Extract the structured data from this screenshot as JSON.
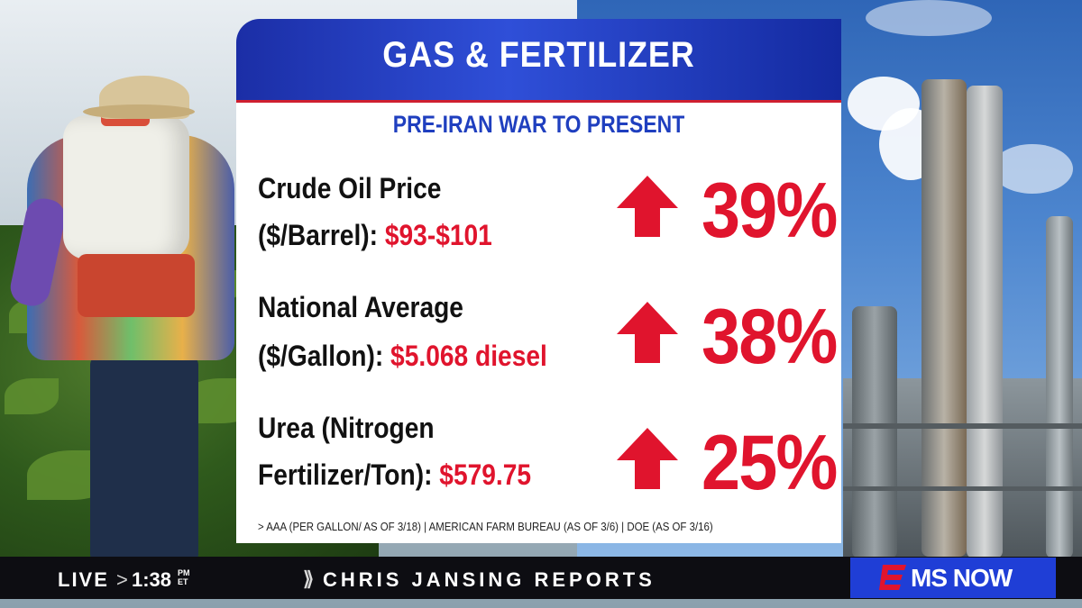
{
  "card": {
    "title": "GAS & FERTILIZER",
    "subtitle": "PRE-IRAN WAR TO PRESENT",
    "rows": [
      {
        "line1": "Crude Oil Price",
        "line2_label": "($/Barrel):",
        "line2_value": "$93-$101",
        "change": "39%"
      },
      {
        "line1": "National Average",
        "line2_label": "($/Gallon):",
        "line2_value": "$5.068 diesel",
        "change": "38%"
      },
      {
        "line1": "Urea (Nitrogen",
        "line2_label": "Fertilizer/Ton):",
        "line2_value": "$579.75",
        "change": "25%"
      }
    ],
    "source": "> AAA (PER GALLON/ AS OF 3/18) | AMERICAN FARM BUREAU (AS OF 3/6) | DOE (AS OF 3/16)"
  },
  "lower_third": {
    "live": "LIVE",
    "chevron": ">",
    "time": "1:38",
    "ampm": "PM",
    "timezone": "ET",
    "show_mark": "⟫",
    "show": "CHRIS JANSING REPORTS"
  },
  "logo": {
    "text": "MS NOW",
    "icon": "ms-now-logo-icon"
  },
  "colors": {
    "header_blue": "#2f4fd8",
    "accent_red": "#e0142d",
    "subtitle_blue": "#1f3fbf",
    "logo_blue": "#1f3ed6"
  }
}
